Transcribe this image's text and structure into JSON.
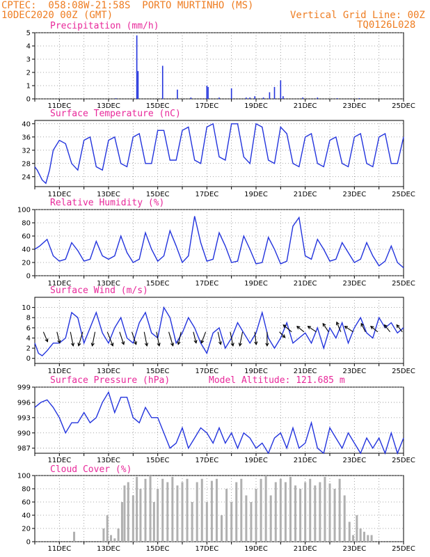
{
  "header": {
    "line1_left": "CPTEC:  058:08W-21:58S  PORTO MURTINHO (MS)",
    "line2_left": "10DEC2020 00Z (GMT)",
    "line2_right": "Vertical Grid Line: 00Z",
    "line3_right": "TQ0126L028"
  },
  "colors": {
    "header": "#ee7d22",
    "title": "#e8289a",
    "line": "#2233dd",
    "bar": "#2233dd",
    "cloud": "#b0b0b0",
    "arrow": "#000000"
  },
  "x_axis": {
    "start": "10DEC2020 00Z",
    "end": "25DEC2020 00Z",
    "tick_labels": [
      "11DEC",
      "13DEC",
      "15DEC",
      "17DEC",
      "19DEC",
      "21DEC",
      "23DEC",
      "25DEC"
    ],
    "tick_days": [
      11,
      13,
      15,
      17,
      19,
      21,
      23,
      25
    ]
  },
  "chart_data": [
    {
      "type": "bar",
      "title": "Precipitation (mm/h)",
      "ylim": [
        0,
        5
      ],
      "yticks": [
        0,
        1,
        2,
        3,
        4,
        5
      ],
      "grid": true,
      "x": [
        13.3,
        14.15,
        14.2,
        15.2,
        15.8,
        16.35,
        17.0,
        17.05,
        17.5,
        18.0,
        18.6,
        18.75,
        18.95,
        19.3,
        19.55,
        19.75,
        20.0,
        20.1,
        20.9,
        21.5,
        22.3,
        23.2
      ],
      "values": [
        0.05,
        4.8,
        2.1,
        2.5,
        0.7,
        0.1,
        1.0,
        0.9,
        0.1,
        0.8,
        0.1,
        0.1,
        0.2,
        0.1,
        0.5,
        0.9,
        1.4,
        0.2,
        0.1,
        0.1,
        0.05,
        0.05
      ]
    },
    {
      "type": "line",
      "title": "Surface Temperature (nC)",
      "ylim": [
        21,
        41
      ],
      "yticks": [
        24,
        28,
        32,
        36,
        40
      ],
      "grid": true,
      "series": [
        {
          "x": [
            10.0,
            10.1,
            10.3,
            10.45,
            10.6,
            10.75,
            11.0,
            11.25,
            11.5,
            11.75,
            12.0,
            12.25,
            12.5,
            12.75,
            13.0,
            13.25,
            13.5,
            13.75,
            14.0,
            14.25,
            14.5,
            14.75,
            15.0,
            15.25,
            15.5,
            15.75,
            16.0,
            16.25,
            16.5,
            16.75,
            17.0,
            17.25,
            17.5,
            17.75,
            18.0,
            18.25,
            18.5,
            18.75,
            19.0,
            19.25,
            19.5,
            19.75,
            20.0,
            20.25,
            20.5,
            20.75,
            21.0,
            21.25,
            21.5,
            21.75,
            22.0,
            22.25,
            22.5,
            22.75,
            23.0,
            23.25,
            23.5,
            23.75,
            24.0,
            24.25,
            24.5,
            24.75,
            25.0
          ],
          "values": [
            27,
            26,
            23,
            22,
            26,
            32,
            35,
            34,
            28,
            26,
            35,
            36,
            27,
            26,
            35,
            36,
            28,
            27,
            36,
            37,
            28,
            28,
            38,
            38,
            29,
            29,
            38,
            39,
            29,
            28,
            39,
            40,
            30,
            29,
            40,
            40,
            30,
            28,
            40,
            39,
            29,
            28,
            39,
            37,
            28,
            27,
            36,
            37,
            28,
            27,
            35,
            36,
            28,
            27,
            36,
            37,
            28,
            27,
            36,
            37,
            28,
            28,
            36
          ]
        }
      ]
    },
    {
      "type": "line",
      "title": "Relative Humidity (%)",
      "ylim": [
        0,
        100
      ],
      "yticks": [
        0,
        20,
        40,
        60,
        80,
        100
      ],
      "grid": true,
      "series": [
        {
          "x": [
            10.0,
            10.2,
            10.5,
            10.75,
            11.0,
            11.25,
            11.5,
            11.75,
            12.0,
            12.25,
            12.5,
            12.75,
            13.0,
            13.25,
            13.5,
            13.75,
            14.0,
            14.25,
            14.5,
            14.75,
            15.0,
            15.25,
            15.5,
            15.75,
            16.0,
            16.25,
            16.5,
            16.75,
            17.0,
            17.25,
            17.5,
            17.75,
            18.0,
            18.25,
            18.5,
            18.75,
            19.0,
            19.25,
            19.5,
            19.75,
            20.0,
            20.25,
            20.5,
            20.75,
            21.0,
            21.25,
            21.5,
            21.75,
            22.0,
            22.25,
            22.5,
            22.75,
            23.0,
            23.25,
            23.5,
            23.75,
            24.0,
            24.25,
            24.5,
            24.75,
            25.0
          ],
          "values": [
            40,
            45,
            55,
            30,
            22,
            25,
            50,
            38,
            22,
            25,
            52,
            30,
            25,
            30,
            60,
            35,
            20,
            25,
            65,
            40,
            22,
            30,
            68,
            45,
            20,
            30,
            90,
            50,
            22,
            25,
            65,
            45,
            20,
            22,
            60,
            40,
            18,
            20,
            58,
            40,
            18,
            22,
            75,
            88,
            30,
            25,
            55,
            40,
            22,
            25,
            50,
            35,
            20,
            25,
            50,
            30,
            15,
            22,
            45,
            20,
            12
          ]
        }
      ]
    },
    {
      "type": "line",
      "title": "Surface Wind (m/s)",
      "ylim": [
        -1,
        12
      ],
      "yticks": [
        0,
        2,
        4,
        6,
        8,
        10
      ],
      "grid": true,
      "series": [
        {
          "x": [
            10.0,
            10.15,
            10.3,
            10.5,
            10.75,
            11.0,
            11.25,
            11.5,
            11.75,
            12.0,
            12.25,
            12.5,
            12.75,
            13.0,
            13.25,
            13.5,
            13.75,
            14.0,
            14.25,
            14.5,
            14.75,
            15.0,
            15.25,
            15.5,
            15.75,
            16.0,
            16.25,
            16.5,
            16.75,
            17.0,
            17.25,
            17.5,
            17.75,
            18.0,
            18.25,
            18.5,
            18.75,
            19.0,
            19.25,
            19.5,
            19.75,
            20.0,
            20.25,
            20.5,
            20.75,
            21.0,
            21.25,
            21.5,
            21.75,
            22.0,
            22.25,
            22.5,
            22.75,
            23.0,
            23.25,
            23.5,
            23.75,
            24.0,
            24.25,
            24.5,
            24.75,
            25.0
          ],
          "values": [
            3,
            1,
            0.5,
            1.5,
            3,
            3,
            4,
            9,
            8,
            3,
            6,
            9,
            5,
            3,
            6,
            8,
            4,
            3,
            7,
            9,
            5,
            4,
            10,
            8,
            3,
            5,
            8,
            6,
            3,
            1,
            5,
            6,
            2,
            4,
            7,
            5,
            3,
            5,
            9,
            4,
            2,
            4,
            7,
            3,
            4,
            5,
            3,
            6,
            2,
            6,
            4,
            7,
            3,
            6,
            8,
            5,
            4,
            8,
            6,
            7,
            5,
            6
          ]
        }
      ],
      "wind_arrows": [
        {
          "x": 10.35,
          "u": 0.3,
          "v": -0.7
        },
        {
          "x": 10.9,
          "u": 0.2,
          "v": -0.8
        },
        {
          "x": 11.45,
          "u": 0.2,
          "v": -1.0
        },
        {
          "x": 11.95,
          "u": -0.3,
          "v": -1.0
        },
        {
          "x": 12.45,
          "u": -0.2,
          "v": -1.0
        },
        {
          "x": 12.95,
          "u": 0.4,
          "v": -1.0
        },
        {
          "x": 13.45,
          "u": 0.3,
          "v": -0.9
        },
        {
          "x": 13.95,
          "u": 0.3,
          "v": -0.9
        },
        {
          "x": 14.45,
          "u": 0.2,
          "v": -1.0
        },
        {
          "x": 14.95,
          "u": 0.2,
          "v": -1.0
        },
        {
          "x": 15.45,
          "u": 0.3,
          "v": -1.0
        },
        {
          "x": 15.95,
          "u": -0.2,
          "v": -0.9
        },
        {
          "x": 16.45,
          "u": 0.2,
          "v": -0.8
        },
        {
          "x": 16.95,
          "u": -0.3,
          "v": -0.8
        },
        {
          "x": 17.45,
          "u": 0.2,
          "v": -0.9
        },
        {
          "x": 17.95,
          "u": 0.2,
          "v": -1.0
        },
        {
          "x": 18.45,
          "u": -0.2,
          "v": -1.0
        },
        {
          "x": 18.95,
          "u": 0.1,
          "v": -0.9
        },
        {
          "x": 19.45,
          "u": 0.0,
          "v": -1.0
        },
        {
          "x": 19.95,
          "u": 0.4,
          "v": -0.4
        },
        {
          "x": 20.45,
          "u": -0.6,
          "v": 0.5
        },
        {
          "x": 20.95,
          "u": -0.5,
          "v": 0.4
        },
        {
          "x": 21.45,
          "u": -0.6,
          "v": 0.4
        },
        {
          "x": 21.95,
          "u": -0.4,
          "v": 0.6
        },
        {
          "x": 22.45,
          "u": -0.3,
          "v": 0.7
        },
        {
          "x": 22.95,
          "u": -0.6,
          "v": 0.4
        },
        {
          "x": 23.45,
          "u": -0.3,
          "v": 0.6
        },
        {
          "x": 23.95,
          "u": -0.5,
          "v": 0.4
        },
        {
          "x": 24.45,
          "u": -0.4,
          "v": 0.5
        },
        {
          "x": 24.95,
          "u": -0.4,
          "v": 0.5
        }
      ]
    },
    {
      "type": "line",
      "title": "Surface Pressure (hPa)",
      "subtitle": "Model Altitude: 121.685 m",
      "ylim": [
        986,
        999
      ],
      "yticks": [
        987,
        990,
        993,
        996,
        999
      ],
      "grid": true,
      "series": [
        {
          "x": [
            10.0,
            10.25,
            10.5,
            10.75,
            11.0,
            11.25,
            11.5,
            11.75,
            12.0,
            12.25,
            12.5,
            12.75,
            13.0,
            13.25,
            13.5,
            13.75,
            14.0,
            14.25,
            14.5,
            14.75,
            15.0,
            15.25,
            15.5,
            15.75,
            16.0,
            16.25,
            16.5,
            16.75,
            17.0,
            17.25,
            17.5,
            17.75,
            18.0,
            18.25,
            18.5,
            18.75,
            19.0,
            19.25,
            19.5,
            19.75,
            20.0,
            20.25,
            20.5,
            20.75,
            21.0,
            21.25,
            21.5,
            21.75,
            22.0,
            22.25,
            22.5,
            22.75,
            23.0,
            23.25,
            23.5,
            23.75,
            24.0,
            24.25,
            24.5,
            24.75,
            25.0
          ],
          "values": [
            995,
            996,
            996.5,
            995,
            993,
            990,
            992,
            992,
            994,
            992,
            993,
            996,
            998,
            994,
            997,
            997,
            993,
            992,
            995,
            993,
            993,
            990,
            987,
            988,
            991,
            987,
            989,
            991,
            990,
            988,
            991,
            988,
            990,
            987,
            990,
            989,
            987,
            988,
            986,
            989,
            990,
            987,
            991,
            987,
            988,
            992,
            987,
            986,
            991,
            989,
            987,
            990,
            988,
            986,
            989,
            987,
            989,
            986,
            990,
            986,
            989
          ]
        }
      ]
    },
    {
      "type": "bar",
      "title": "Cloud Cover (%)",
      "ylim": [
        0,
        100
      ],
      "yticks": [
        0,
        20,
        40,
        60,
        80,
        100
      ],
      "grid": true,
      "x": [
        11.6,
        12.8,
        12.95,
        13.1,
        13.25,
        13.4,
        13.55,
        13.65,
        13.8,
        14.0,
        14.15,
        14.3,
        14.5,
        14.7,
        14.85,
        15.0,
        15.2,
        15.4,
        15.6,
        15.8,
        16.0,
        16.2,
        16.4,
        16.6,
        16.8,
        17.0,
        17.2,
        17.4,
        17.6,
        17.8,
        18.0,
        18.2,
        18.4,
        18.6,
        18.8,
        19.0,
        19.2,
        19.4,
        19.6,
        19.8,
        20.0,
        20.2,
        20.4,
        20.6,
        20.8,
        21.0,
        21.2,
        21.4,
        21.6,
        21.8,
        22.0,
        22.2,
        22.4,
        22.6,
        22.8,
        22.95,
        23.1,
        23.25,
        23.4,
        23.55,
        23.7
      ],
      "values": [
        15,
        20,
        40,
        10,
        5,
        20,
        60,
        85,
        90,
        70,
        98,
        80,
        95,
        100,
        60,
        80,
        95,
        90,
        98,
        85,
        90,
        95,
        60,
        90,
        95,
        60,
        92,
        95,
        40,
        80,
        60,
        90,
        95,
        70,
        60,
        80,
        95,
        100,
        70,
        90,
        95,
        90,
        98,
        85,
        80,
        90,
        95,
        85,
        90,
        98,
        88,
        80,
        95,
        70,
        30,
        10,
        40,
        20,
        15,
        10,
        10
      ]
    }
  ]
}
